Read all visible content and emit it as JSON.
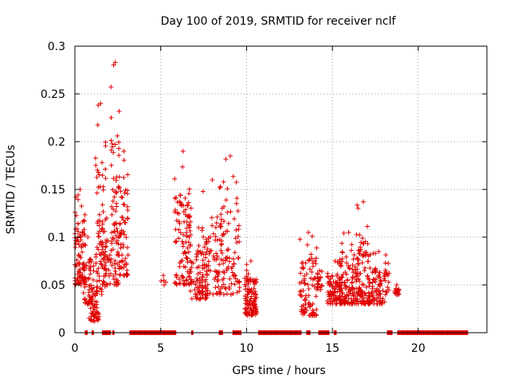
{
  "chart_data": {
    "type": "scatter",
    "title": "Day 100 of 2019, SRMTID for receiver nclf",
    "xlabel": "GPS time / hours",
    "ylabel": "SRMTID / TECUs",
    "xlim": [
      0,
      24
    ],
    "ylim": [
      0,
      0.3
    ],
    "x_ticks": [
      0,
      5,
      10,
      15,
      20
    ],
    "x_tick_labels": [
      "0",
      "5",
      "10",
      "15",
      "20"
    ],
    "y_ticks": [
      0,
      0.05,
      0.1,
      0.15,
      0.2,
      0.25,
      0.3
    ],
    "y_tick_labels": [
      "0",
      "0.05",
      "0.1",
      "0.15",
      "0.2",
      "0.25",
      "0.3"
    ],
    "grid": true,
    "marker": "+",
    "series_color": "#e00000",
    "grid_color": "#a0a0a0",
    "series": [
      {
        "name": "SRMTID",
        "clusters": [
          {
            "x": [
              0.0,
              0.6
            ],
            "y": [
              0.05,
              0.15
            ],
            "n": 90
          },
          {
            "x": [
              0.5,
              1.0
            ],
            "y": [
              0.03,
              0.1
            ],
            "n": 40
          },
          {
            "x": [
              0.8,
              1.4
            ],
            "y": [
              0.012,
              0.07
            ],
            "n": 60
          },
          {
            "x": [
              1.2,
              1.8
            ],
            "y": [
              0.04,
              0.24
            ],
            "n": 70
          },
          {
            "x": [
              1.6,
              2.1
            ],
            "y": [
              0.05,
              0.12
            ],
            "n": 40
          },
          {
            "x": [
              2.1,
              2.6
            ],
            "y": [
              0.05,
              0.283
            ],
            "n": 80
          },
          {
            "x": [
              2.6,
              3.1
            ],
            "y": [
              0.06,
              0.19
            ],
            "n": 60
          },
          {
            "x": [
              5.0,
              5.3
            ],
            "y": [
              0.05,
              0.06
            ],
            "n": 3
          },
          {
            "x": [
              5.8,
              6.8
            ],
            "y": [
              0.05,
              0.19
            ],
            "n": 110
          },
          {
            "x": [
              6.7,
              7.7
            ],
            "y": [
              0.035,
              0.11
            ],
            "n": 70
          },
          {
            "x": [
              7.4,
              8.6
            ],
            "y": [
              0.04,
              0.16
            ],
            "n": 90
          },
          {
            "x": [
              8.5,
              9.6
            ],
            "y": [
              0.04,
              0.185
            ],
            "n": 80
          },
          {
            "x": [
              9.9,
              10.6
            ],
            "y": [
              0.018,
              0.075
            ],
            "n": 110
          },
          {
            "x": [
              13.1,
              14.1
            ],
            "y": [
              0.018,
              0.105
            ],
            "n": 90
          },
          {
            "x": [
              14.1,
              14.4
            ],
            "y": [
              0.045,
              0.065
            ],
            "n": 20
          },
          {
            "x": [
              14.7,
              15.6
            ],
            "y": [
              0.03,
              0.075
            ],
            "n": 90
          },
          {
            "x": [
              15.4,
              16.5
            ],
            "y": [
              0.03,
              0.105
            ],
            "n": 110
          },
          {
            "x": [
              16.4,
              17.2
            ],
            "y": [
              0.03,
              0.137
            ],
            "n": 90
          },
          {
            "x": [
              17.1,
              18.3
            ],
            "y": [
              0.03,
              0.085
            ],
            "n": 90
          },
          {
            "x": [
              18.6,
              18.9
            ],
            "y": [
              0.04,
              0.05
            ],
            "n": 15
          }
        ],
        "zero_segments": [
          [
            0.6,
            0.75
          ],
          [
            1.0,
            1.1
          ],
          [
            1.6,
            2.1
          ],
          [
            2.2,
            2.3
          ],
          [
            3.2,
            5.9
          ],
          [
            6.8,
            6.9
          ],
          [
            8.4,
            8.6
          ],
          [
            9.2,
            9.7
          ],
          [
            10.7,
            13.2
          ],
          [
            13.5,
            13.7
          ],
          [
            14.2,
            14.8
          ],
          [
            15.1,
            15.25
          ],
          [
            18.2,
            18.5
          ],
          [
            18.8,
            22.9
          ]
        ]
      }
    ]
  }
}
